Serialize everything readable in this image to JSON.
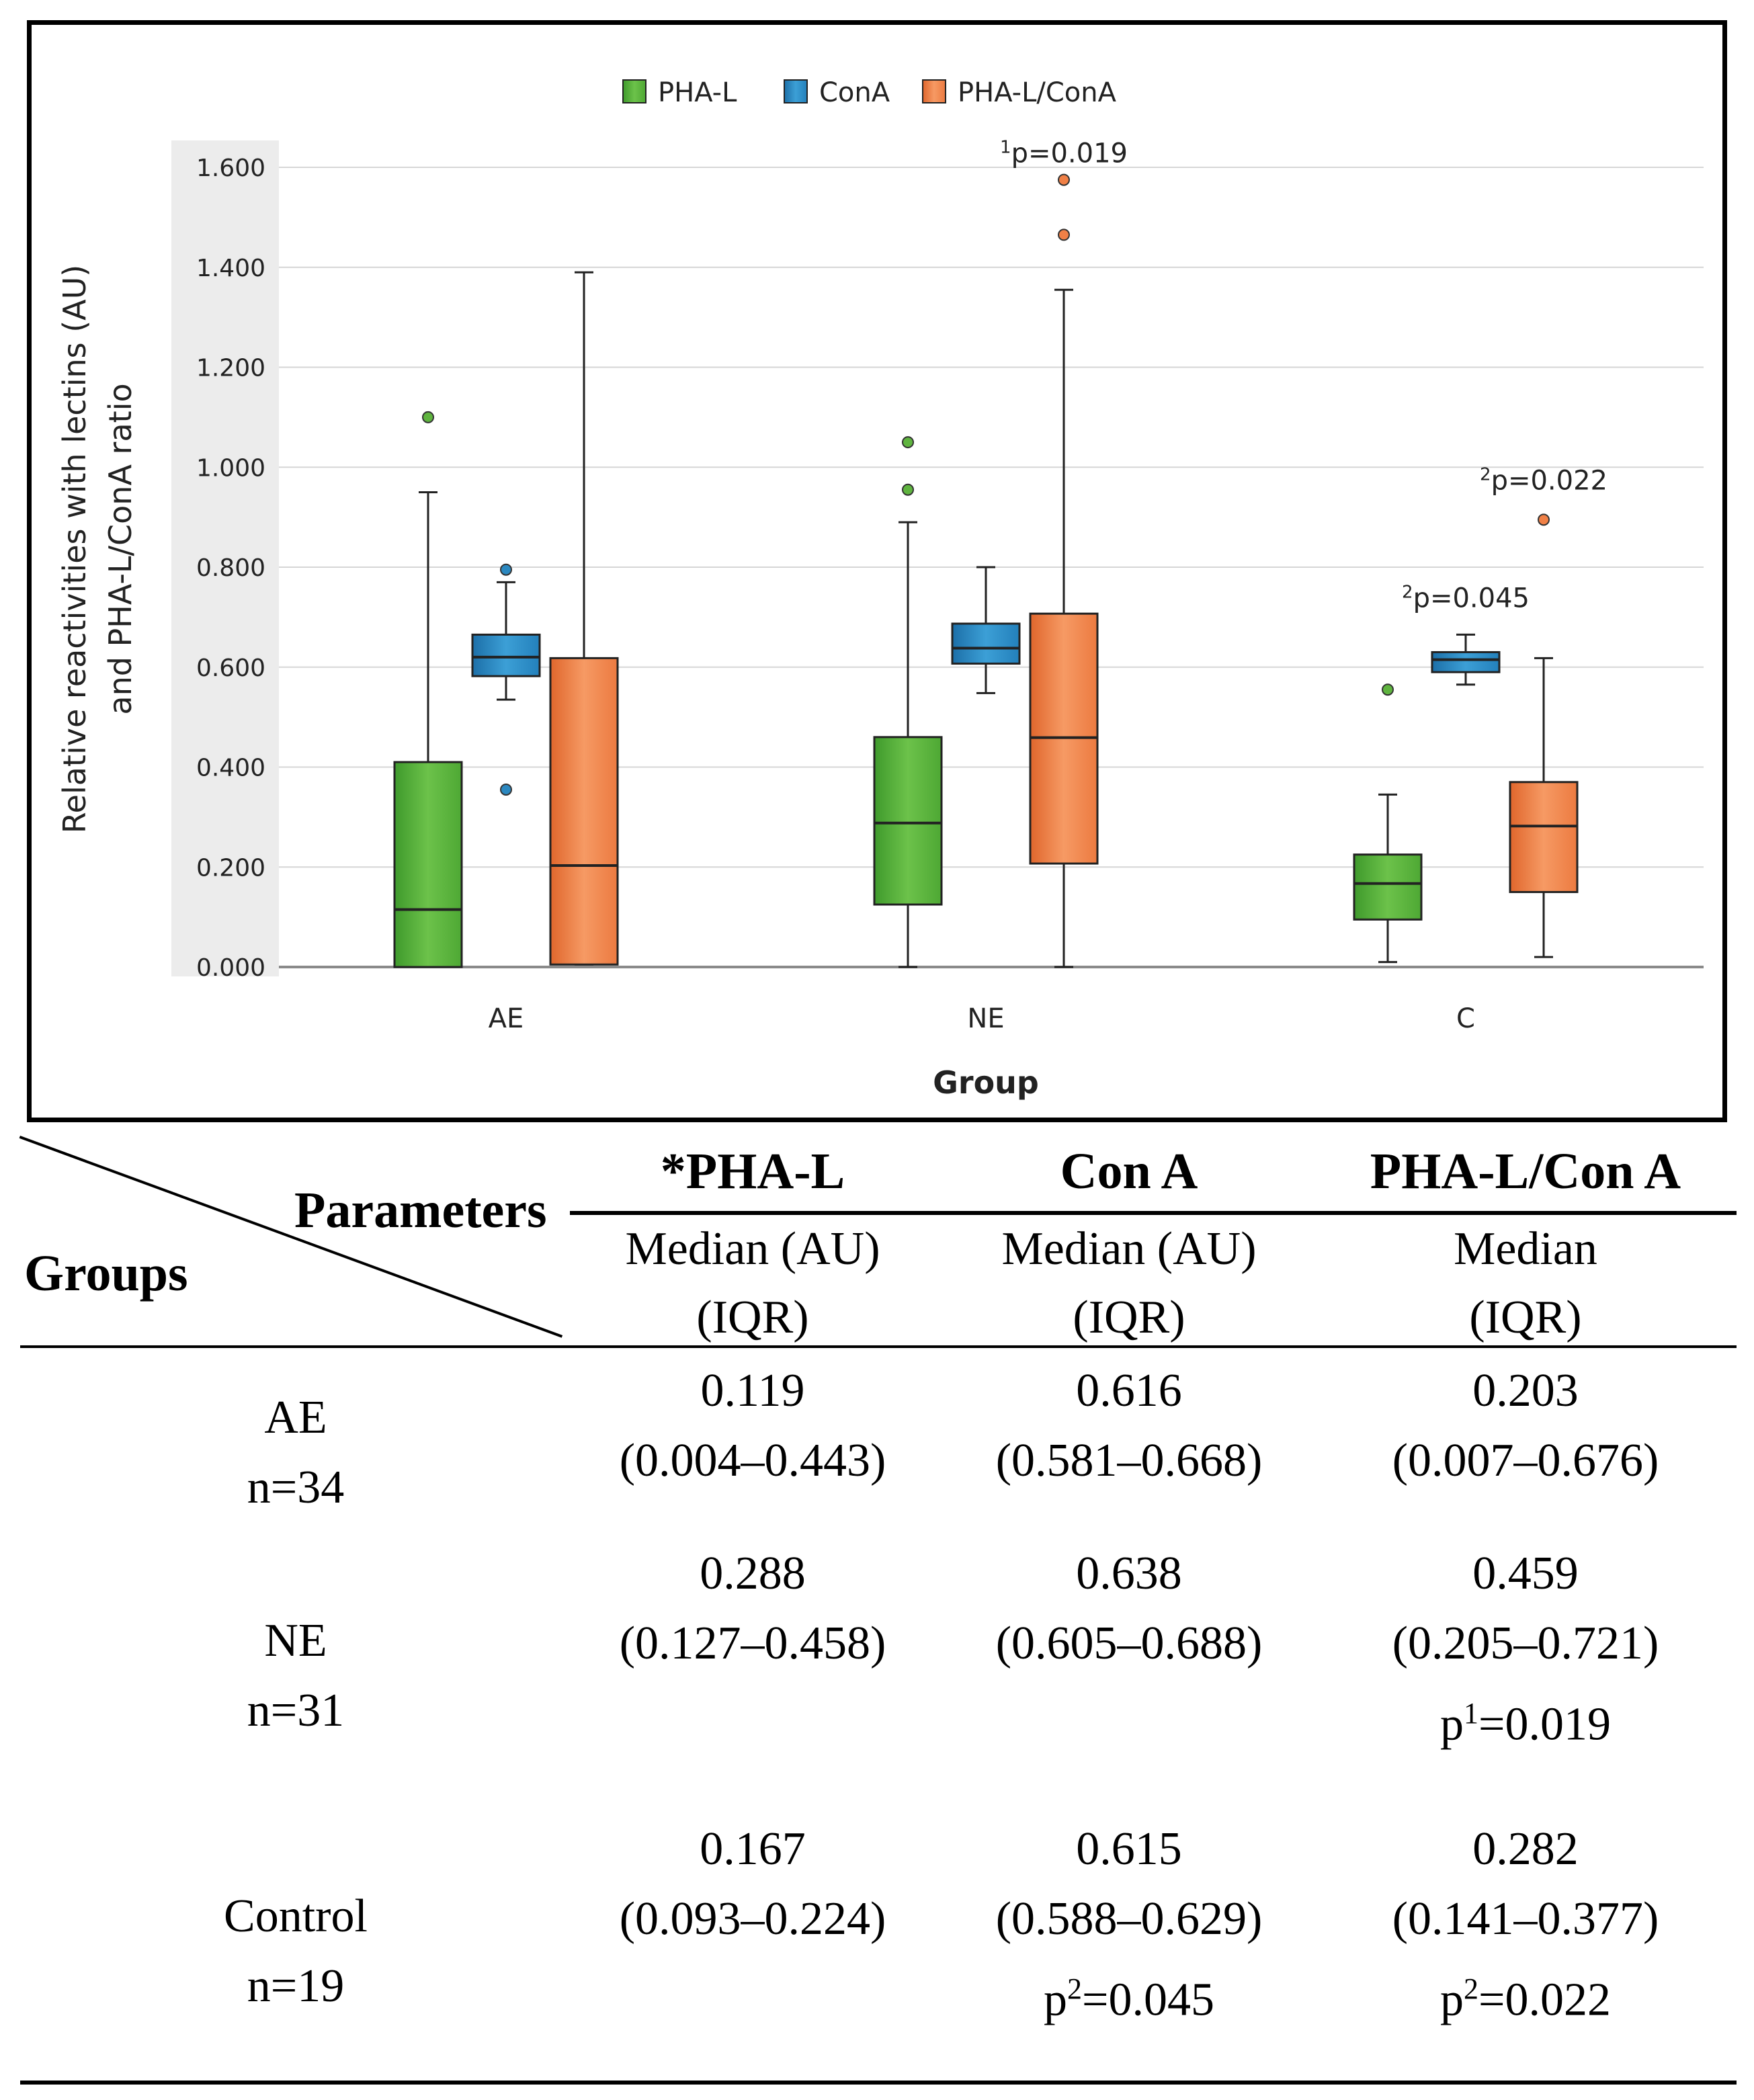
{
  "chart_data": {
    "type": "boxplot",
    "legend": {
      "placement": "top-center",
      "entries": [
        {
          "name": "PHA-L",
          "color": "#5fb43f"
        },
        {
          "name": "ConA",
          "color": "#2b88c0"
        },
        {
          "name": "PHA-L/ConA",
          "color": "#f08046"
        }
      ]
    },
    "xlabel": "Group",
    "ylabel_line1": "Relative reactivities with lectins (AU)",
    "ylabel_line2": "and PHA-L/ConA ratio",
    "ylim": [
      0,
      1.6
    ],
    "yticks": [
      "0.000",
      "0.200",
      "0.400",
      "0.600",
      "0.800",
      "1.000",
      "1.200",
      "1.400",
      "1.600"
    ],
    "categories": [
      "AE",
      "NE",
      "C"
    ],
    "series": [
      {
        "name": "PHA-L",
        "boxes": [
          {
            "whisker_low": 0.0,
            "q1": 0.0,
            "median": 0.115,
            "q3": 0.41,
            "whisker_high": 0.95,
            "outliers": [
              1.1
            ]
          },
          {
            "whisker_low": 0.0,
            "q1": 0.125,
            "median": 0.288,
            "q3": 0.46,
            "whisker_high": 0.89,
            "outliers": [
              0.955,
              1.05
            ]
          },
          {
            "whisker_low": 0.01,
            "q1": 0.095,
            "median": 0.167,
            "q3": 0.225,
            "whisker_high": 0.345,
            "outliers": [
              0.555
            ]
          }
        ]
      },
      {
        "name": "ConA",
        "boxes": [
          {
            "whisker_low": 0.535,
            "q1": 0.582,
            "median": 0.62,
            "q3": 0.665,
            "whisker_high": 0.77,
            "outliers": [
              0.795,
              0.355
            ]
          },
          {
            "whisker_low": 0.548,
            "q1": 0.607,
            "median": 0.638,
            "q3": 0.687,
            "whisker_high": 0.8,
            "outliers": []
          },
          {
            "whisker_low": 0.565,
            "q1": 0.59,
            "median": 0.615,
            "q3": 0.63,
            "whisker_high": 0.665,
            "outliers": []
          }
        ]
      },
      {
        "name": "PHA-L/ConA",
        "boxes": [
          {
            "whisker_low": 0.005,
            "q1": 0.005,
            "median": 0.203,
            "q3": 0.618,
            "whisker_high": 1.39,
            "outliers": []
          },
          {
            "whisker_low": 0.0,
            "q1": 0.207,
            "median": 0.459,
            "q3": 0.707,
            "whisker_high": 1.355,
            "outliers": [
              1.465,
              1.575
            ]
          },
          {
            "whisker_low": 0.02,
            "q1": 0.15,
            "median": 0.282,
            "q3": 0.37,
            "whisker_high": 0.618,
            "outliers": [
              0.895
            ]
          }
        ]
      }
    ],
    "annotations": [
      {
        "sup": "1",
        "text": "p=0.019",
        "category": "NE",
        "series": "PHA-L/ConA",
        "y": 1.61
      },
      {
        "sup": "2",
        "text": "p=0.022",
        "category": "C",
        "series": "PHA-L/ConA",
        "y": 0.955
      },
      {
        "sup": "2",
        "text": "p=0.045",
        "category": "C",
        "series": "ConA",
        "y": 0.72
      }
    ]
  },
  "table": {
    "corner_parameters": "Parameters",
    "corner_groups": "Groups",
    "columns": [
      {
        "title": "*PHA-L",
        "sub1": "Median (AU)",
        "sub2": "(IQR)"
      },
      {
        "title": "Con A",
        "sub1": "Median (AU)",
        "sub2": "(IQR)"
      },
      {
        "title": "PHA-L/Con A",
        "sub1": "Median",
        "sub2": "(IQR)"
      }
    ],
    "rows": [
      {
        "group": "AE",
        "n": "n=34",
        "cells": [
          {
            "median": "0.119",
            "iqr": "(0.004–0.443)",
            "p_base": "",
            "p_sup": "",
            "p_val": ""
          },
          {
            "median": "0.616",
            "iqr": "(0.581–0.668)",
            "p_base": "",
            "p_sup": "",
            "p_val": ""
          },
          {
            "median": "0.203",
            "iqr": "(0.007–0.676)",
            "p_base": "",
            "p_sup": "",
            "p_val": ""
          }
        ]
      },
      {
        "group": "NE",
        "n": "n=31",
        "cells": [
          {
            "median": "0.288",
            "iqr": "(0.127–0.458)",
            "p_base": "",
            "p_sup": "",
            "p_val": ""
          },
          {
            "median": "0.638",
            "iqr": "(0.605–0.688)",
            "p_base": "",
            "p_sup": "",
            "p_val": ""
          },
          {
            "median": "0.459",
            "iqr": "(0.205–0.721)",
            "p_base": "p",
            "p_sup": "1",
            "p_val": "=0.019"
          }
        ]
      },
      {
        "group": "Control",
        "n": "n=19",
        "cells": [
          {
            "median": "0.167",
            "iqr": "(0.093–0.224)",
            "p_base": "",
            "p_sup": "",
            "p_val": ""
          },
          {
            "median": "0.615",
            "iqr": "(0.588–0.629)",
            "p_base": "p",
            "p_sup": "2",
            "p_val": "=0.045"
          },
          {
            "median": "0.282",
            "iqr": "(0.141–0.377)",
            "p_base": "p",
            "p_sup": "2",
            "p_val": "=0.022"
          }
        ]
      }
    ]
  }
}
